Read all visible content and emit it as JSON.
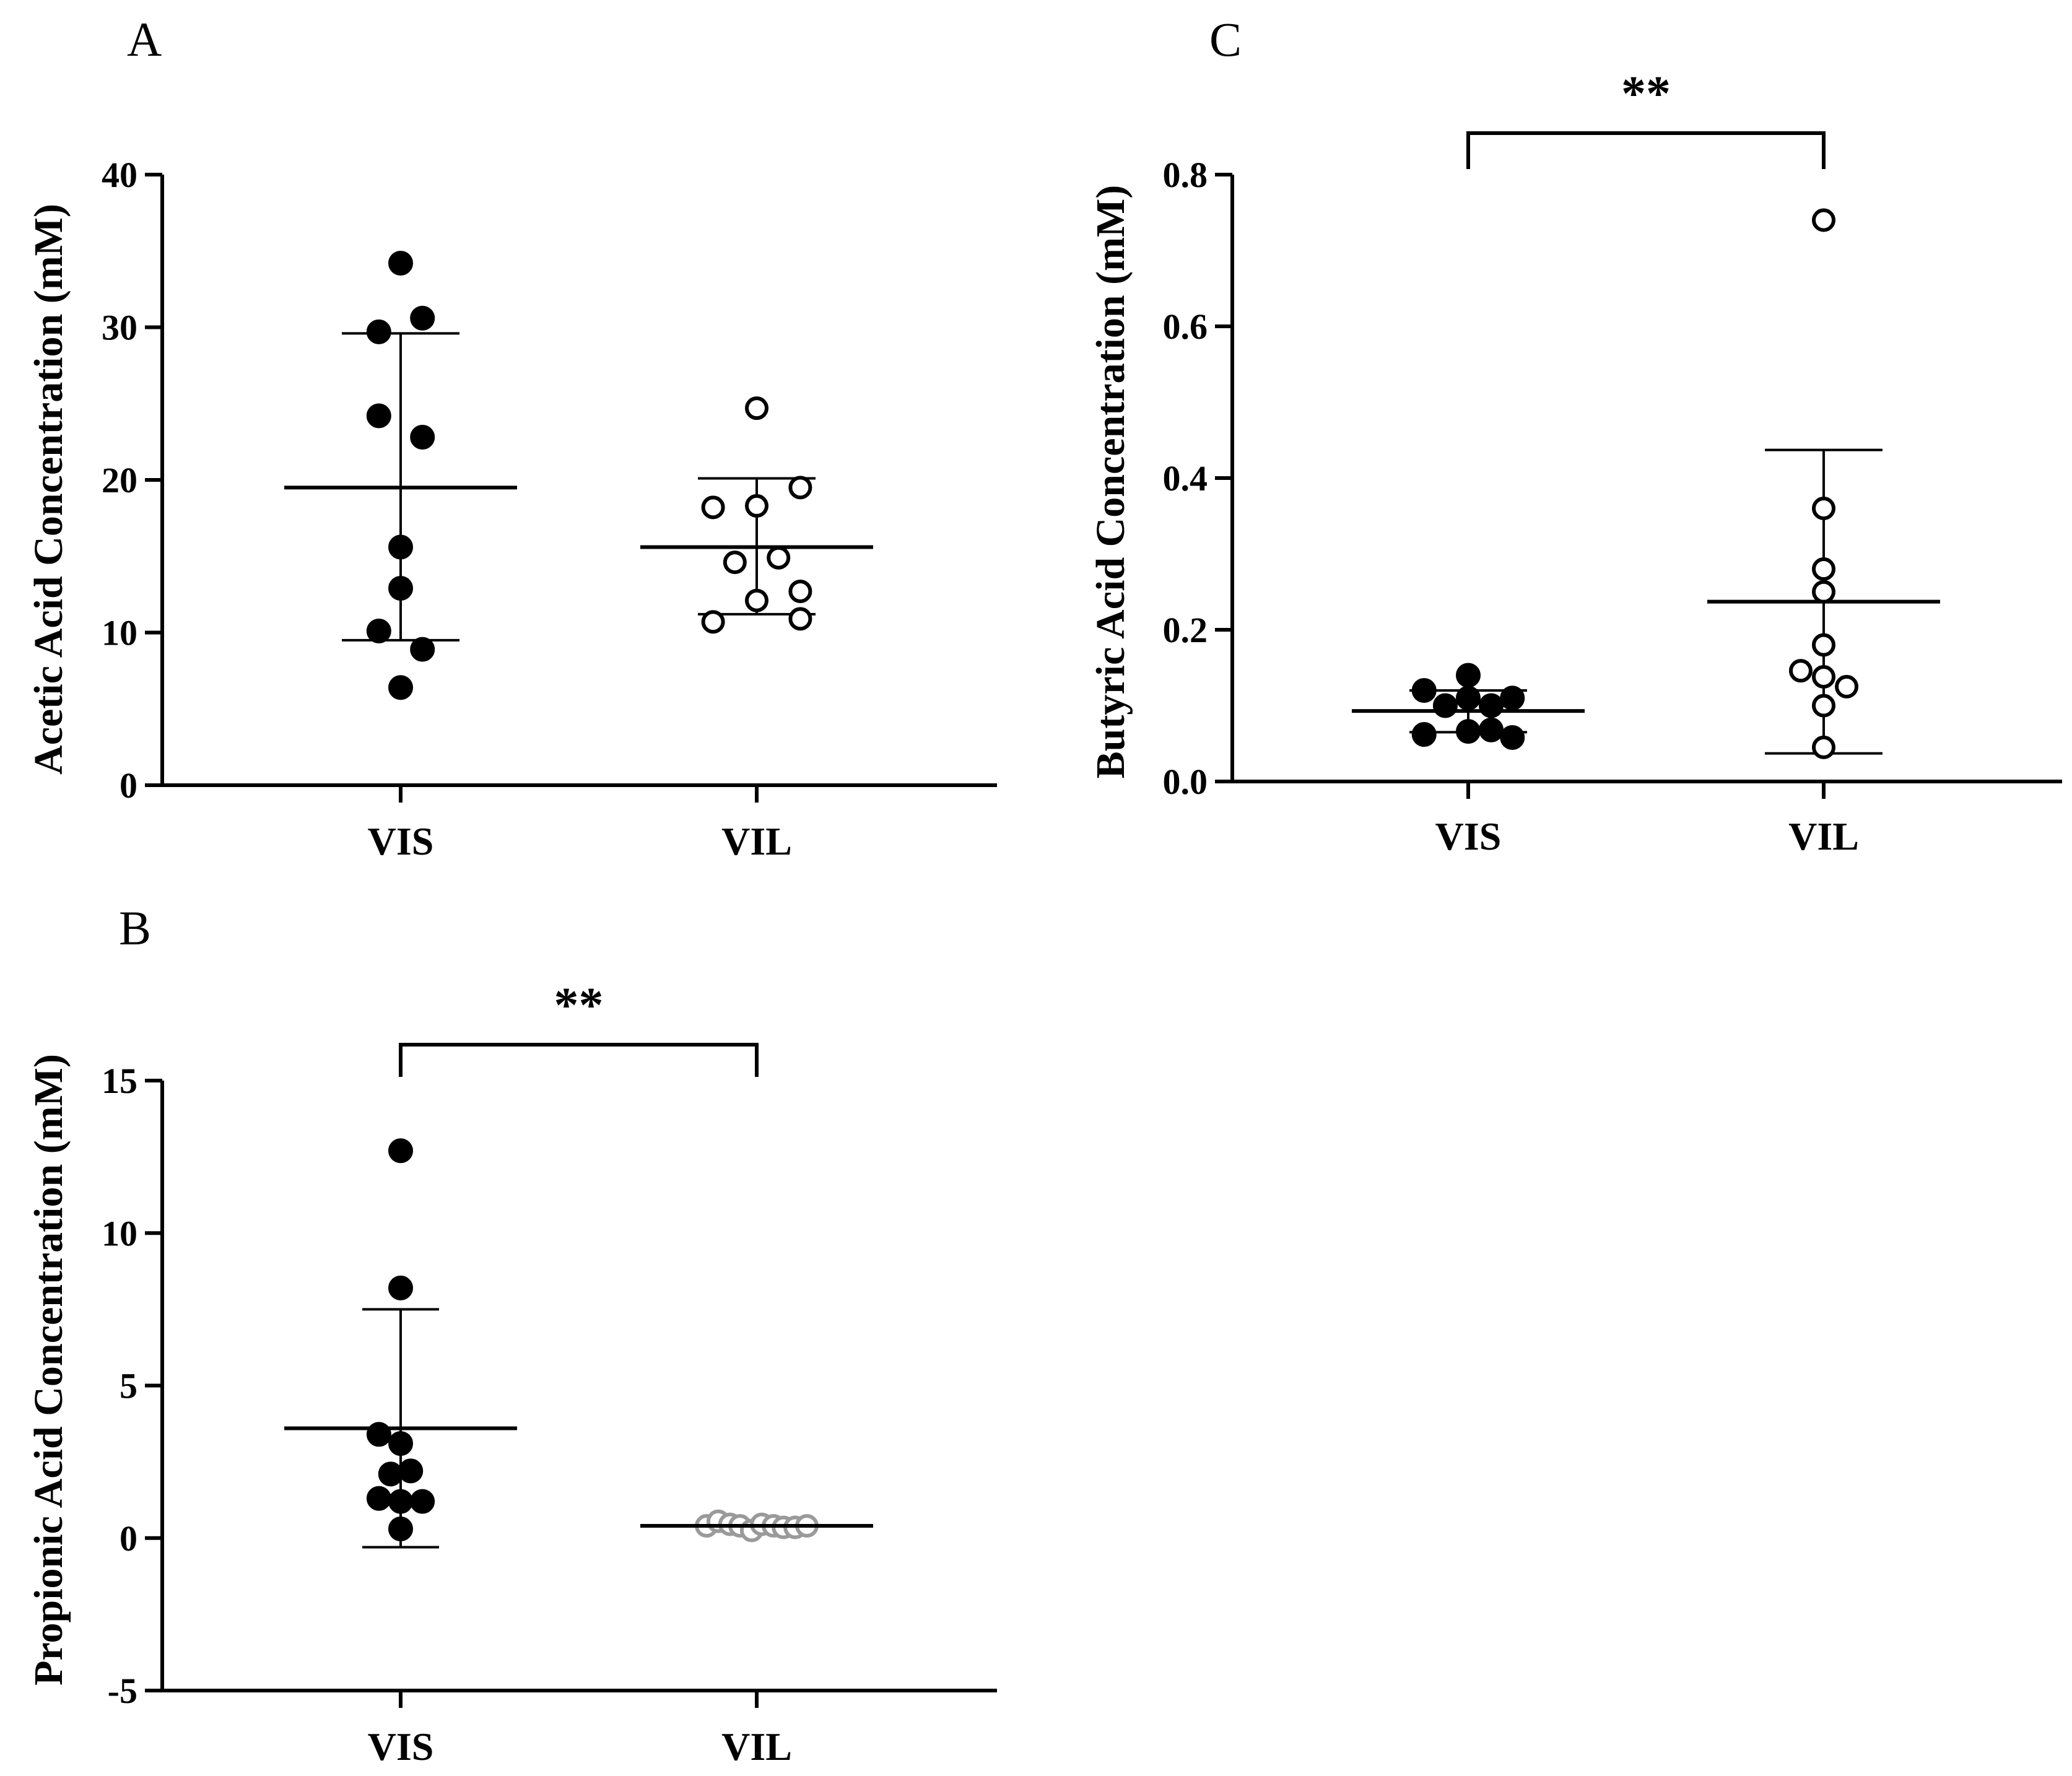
{
  "chart_data": [
    {
      "panel": "A",
      "type": "scatter",
      "ylabel": "Acetic Acid Concentration (mM)",
      "xlabel": "",
      "ylim": [
        0,
        40
      ],
      "yticks": [
        0,
        10,
        20,
        30,
        40
      ],
      "grid": false,
      "categories": [
        "VIS",
        "VIL"
      ],
      "series": [
        {
          "name": "VIS",
          "marker": "filled",
          "color": "#000000",
          "points": [
            {
              "offset": 0,
              "y": 34.2
            },
            {
              "offset": -0.11,
              "y": 29.7
            },
            {
              "offset": 0.11,
              "y": 30.6
            },
            {
              "offset": -0.11,
              "y": 24.2
            },
            {
              "offset": 0.11,
              "y": 22.8
            },
            {
              "offset": 0,
              "y": 15.6
            },
            {
              "offset": 0,
              "y": 12.9
            },
            {
              "offset": -0.11,
              "y": 10.1
            },
            {
              "offset": 0.11,
              "y": 8.9
            },
            {
              "offset": 0,
              "y": 6.4
            }
          ],
          "mean": 19.5,
          "sd_upper": 29.6,
          "sd_lower": 9.5
        },
        {
          "name": "VIL",
          "marker": "open",
          "color": "#000000",
          "points": [
            {
              "offset": 0,
              "y": 24.7
            },
            {
              "offset": 0.22,
              "y": 19.5
            },
            {
              "offset": -0.22,
              "y": 18.2
            },
            {
              "offset": 0,
              "y": 18.3
            },
            {
              "offset": 0.11,
              "y": 14.9
            },
            {
              "offset": -0.11,
              "y": 14.6
            },
            {
              "offset": 0.22,
              "y": 12.7
            },
            {
              "offset": 0,
              "y": 12.1
            },
            {
              "offset": -0.22,
              "y": 10.7
            },
            {
              "offset": 0.22,
              "y": 10.9
            }
          ],
          "mean": 15.6,
          "sd_upper": 20.1,
          "sd_lower": 11.2
        }
      ],
      "significance": null
    },
    {
      "panel": "B",
      "type": "scatter",
      "ylabel": "Propionic Acid Concentration (mM)",
      "xlabel": "",
      "ylim": [
        -5,
        15
      ],
      "yticks": [
        -5,
        0,
        5,
        10,
        15
      ],
      "grid": false,
      "categories": [
        "VIS",
        "VIL"
      ],
      "series": [
        {
          "name": "VIS",
          "marker": "filled",
          "color": "#000000",
          "points": [
            {
              "offset": 0,
              "y": 12.7
            },
            {
              "offset": 0,
              "y": 8.2
            },
            {
              "offset": -0.13,
              "y": 3.4
            },
            {
              "offset": 0,
              "y": 3.1
            },
            {
              "offset": -0.06,
              "y": 2.1
            },
            {
              "offset": 0.06,
              "y": 2.2
            },
            {
              "offset": -0.13,
              "y": 1.3
            },
            {
              "offset": 0.13,
              "y": 1.2
            },
            {
              "offset": 0,
              "y": 1.2
            },
            {
              "offset": 0,
              "y": 0.3
            }
          ],
          "mean": 3.6,
          "sd_upper": 7.5,
          "sd_lower": -0.3
        },
        {
          "name": "VIL",
          "marker": "open",
          "color": "#9a9a9a",
          "points": [
            {
              "offset": -0.3,
              "y": 0.4
            },
            {
              "offset": -0.23,
              "y": 0.55
            },
            {
              "offset": -0.16,
              "y": 0.45
            },
            {
              "offset": -0.1,
              "y": 0.4
            },
            {
              "offset": -0.03,
              "y": 0.25
            },
            {
              "offset": 0.03,
              "y": 0.45
            },
            {
              "offset": 0.1,
              "y": 0.4
            },
            {
              "offset": 0.16,
              "y": 0.35
            },
            {
              "offset": 0.23,
              "y": 0.35
            },
            {
              "offset": 0.3,
              "y": 0.4
            }
          ],
          "mean": 0.4,
          "sd_upper": 0.4,
          "sd_lower": 0.4
        }
      ],
      "significance": {
        "label": "**",
        "from": "VIS",
        "to": "VIL"
      }
    },
    {
      "panel": "C",
      "type": "scatter",
      "ylabel": "Butyric Acid Concentration (mM)",
      "xlabel": "",
      "ylim": [
        0,
        0.8
      ],
      "yticks": [
        0.0,
        0.2,
        0.4,
        0.6,
        0.8
      ],
      "ytick_labels": [
        "0.0",
        "0.2",
        "0.4",
        "0.6",
        "0.8"
      ],
      "grid": false,
      "categories": [
        "VIS",
        "VIL"
      ],
      "series": [
        {
          "name": "VIS",
          "marker": "filled",
          "color": "#000000",
          "points": [
            {
              "offset": 0,
              "y": 0.14
            },
            {
              "offset": -0.25,
              "y": 0.12
            },
            {
              "offset": 0.25,
              "y": 0.11
            },
            {
              "offset": -0.13,
              "y": 0.1
            },
            {
              "offset": 0,
              "y": 0.11
            },
            {
              "offset": 0.13,
              "y": 0.1
            },
            {
              "offset": -0.25,
              "y": 0.062
            },
            {
              "offset": 0,
              "y": 0.066
            },
            {
              "offset": 0.13,
              "y": 0.068
            },
            {
              "offset": 0.25,
              "y": 0.058
            }
          ],
          "mean": 0.093,
          "sd_upper": 0.12,
          "sd_lower": 0.065
        },
        {
          "name": "VIL",
          "marker": "open",
          "color": "#000000",
          "points": [
            {
              "offset": 0,
              "y": 0.74
            },
            {
              "offset": 0,
              "y": 0.36
            },
            {
              "offset": 0,
              "y": 0.28
            },
            {
              "offset": 0,
              "y": 0.25
            },
            {
              "offset": 0,
              "y": 0.18
            },
            {
              "offset": -0.13,
              "y": 0.146
            },
            {
              "offset": 0,
              "y": 0.138
            },
            {
              "offset": 0.13,
              "y": 0.125
            },
            {
              "offset": 0,
              "y": 0.1
            },
            {
              "offset": 0,
              "y": 0.045
            }
          ],
          "mean": 0.237,
          "sd_upper": 0.437,
          "sd_lower": 0.037
        }
      ],
      "significance": {
        "label": "**",
        "from": "VIS",
        "to": "VIL"
      }
    }
  ]
}
